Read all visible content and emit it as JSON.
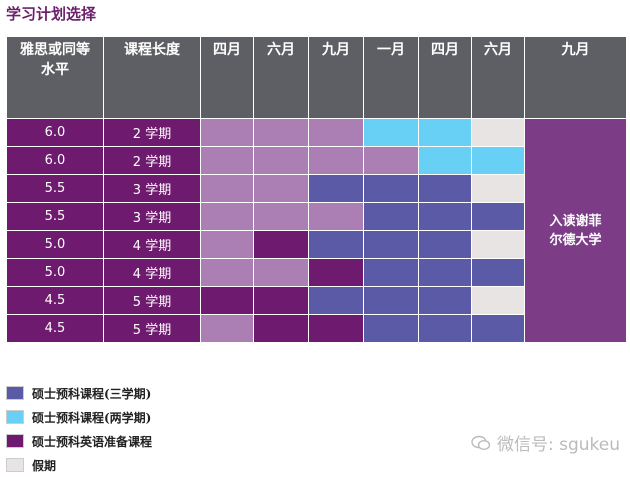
{
  "title": "学习计划选择",
  "table": {
    "headers": [
      "雅思或同等水平",
      "课程长度",
      "四月",
      "六月",
      "九月",
      "一月",
      "四月",
      "六月",
      "九月"
    ],
    "rows": [
      {
        "level": "6.0",
        "length": "2 学期",
        "cells": [
          "l",
          "l",
          "l",
          "2",
          "2",
          "h"
        ]
      },
      {
        "level": "6.0",
        "length": "2 学期",
        "cells": [
          "l",
          "l",
          "l",
          "l",
          "2",
          "2"
        ]
      },
      {
        "level": "5.5",
        "length": "3 学期",
        "cells": [
          "l",
          "l",
          "3",
          "3",
          "3",
          "h"
        ]
      },
      {
        "level": "5.5",
        "length": "3 学期",
        "cells": [
          "l",
          "l",
          "l",
          "3",
          "3",
          "3"
        ]
      },
      {
        "level": "5.0",
        "length": "4 学期",
        "cells": [
          "l",
          "e",
          "3",
          "3",
          "3",
          "h"
        ]
      },
      {
        "level": "5.0",
        "length": "4 学期",
        "cells": [
          "l",
          "l",
          "e",
          "3",
          "3",
          "3"
        ]
      },
      {
        "level": "4.5",
        "length": "5 学期",
        "cells": [
          "e",
          "e",
          "3",
          "3",
          "3",
          "h"
        ]
      },
      {
        "level": "4.5",
        "length": "5 学期",
        "cells": [
          "l",
          "e",
          "e",
          "3",
          "3",
          "3"
        ]
      }
    ],
    "final_text": "入读谢菲尔德大学"
  },
  "legend": [
    {
      "label": "硕士预科课程(三学期)",
      "color": "#5a5aa6"
    },
    {
      "label": "硕士预科课程(两学期)",
      "color": "#68cff5"
    },
    {
      "label": "硕士预科英语准备课程",
      "color": "#6e1a6e"
    },
    {
      "label": "假期",
      "color": "#e8e4e4"
    }
  ],
  "watermark": "微信号: sgukeu",
  "colors": {
    "unused": "#ab7fb4",
    "header": "#5e5f64",
    "final": "#7c3d86"
  }
}
